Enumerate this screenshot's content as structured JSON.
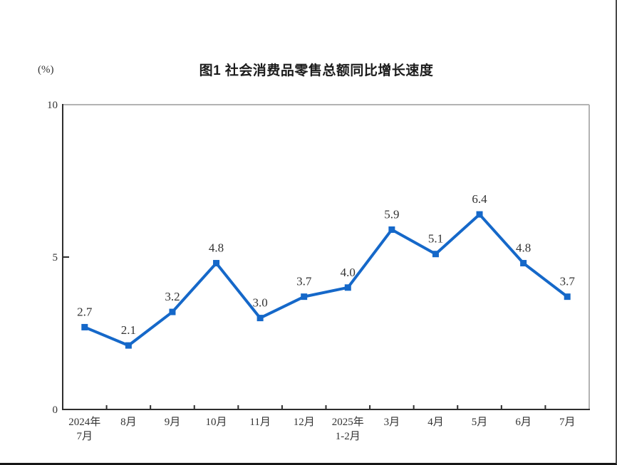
{
  "page": {
    "background": "#ffffff"
  },
  "chart_data": {
    "type": "line",
    "title": "图1  社会消费品零售总额同比增长速度",
    "ylabel": "(%)",
    "categories": [
      "2024年\n7月",
      "8月",
      "9月",
      "10月",
      "11月",
      "12月",
      "2025年\n1-2月",
      "3月",
      "4月",
      "5月",
      "6月",
      "7月"
    ],
    "values": [
      2.7,
      2.1,
      3.2,
      4.8,
      3.0,
      3.7,
      4.0,
      5.9,
      5.1,
      6.4,
      4.8,
      3.7
    ],
    "ylim": [
      0,
      10
    ],
    "yticks": [
      0,
      5,
      10
    ],
    "grid": false,
    "legend": "none",
    "line_color": "#1568C9",
    "marker": "square",
    "axis_color": "#2e2e2e",
    "frame_color": "#b3b3b3",
    "label_color": "#333333"
  }
}
